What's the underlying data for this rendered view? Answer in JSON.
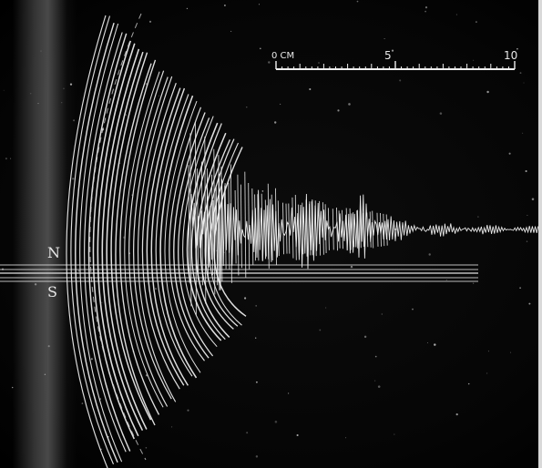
{
  "scale": {
    "label_zero": "0 CM",
    "label_mid": "5",
    "label_end": "10"
  },
  "markers": {
    "north": "N",
    "south": "S"
  },
  "colors": {
    "background": "#050505",
    "trace": "#f2f2f2",
    "band": "#7a7a7a"
  }
}
